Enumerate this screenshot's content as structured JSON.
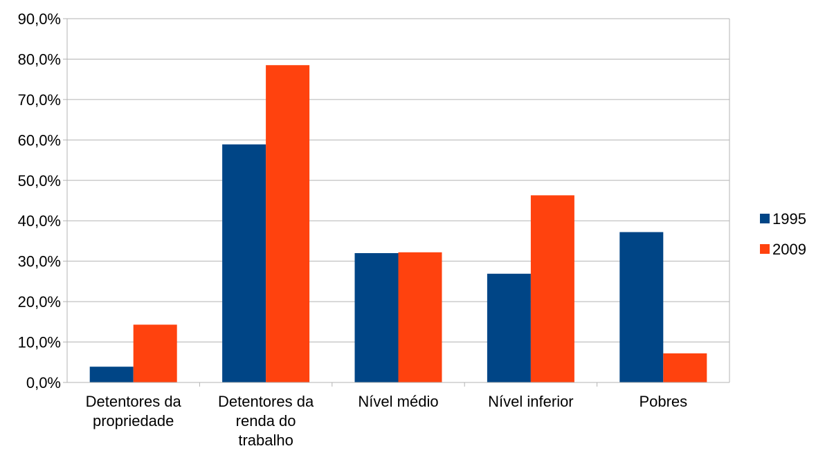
{
  "chart_data": {
    "type": "bar",
    "title": "",
    "xlabel": "",
    "ylabel": "",
    "categories": [
      [
        "Detentores da",
        "propriedade"
      ],
      [
        "Detentores da",
        "renda do",
        "trabalho"
      ],
      [
        "Nível médio"
      ],
      [
        "Nível inferior"
      ],
      [
        "Pobres"
      ]
    ],
    "series": [
      {
        "name": "1995",
        "color": "#004586",
        "values": [
          3.9,
          58.9,
          32.0,
          26.9,
          37.2
        ]
      },
      {
        "name": "2009",
        "color": "#ff420e",
        "values": [
          14.3,
          78.5,
          32.2,
          46.3,
          7.2
        ]
      }
    ],
    "ylim": [
      0,
      90
    ],
    "yticks": [
      "0,0%",
      "10,0%",
      "20,0%",
      "30,0%",
      "40,0%",
      "50,0%",
      "60,0%",
      "70,0%",
      "80,0%",
      "90,0%"
    ],
    "grid": true,
    "legend": "right"
  }
}
